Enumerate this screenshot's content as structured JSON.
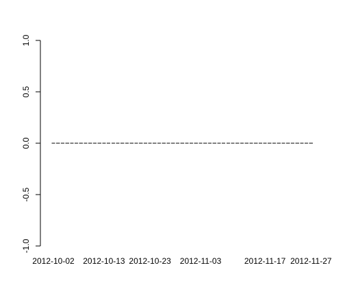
{
  "chart_data": {
    "type": "bar",
    "title": "",
    "xlabel": "",
    "ylabel": "",
    "ylim": [
      -1.0,
      1.0
    ],
    "y_ticks": [
      -1.0,
      -0.5,
      0.0,
      0.5,
      1.0
    ],
    "y_tick_labels": [
      "-1.0",
      "-0.5",
      "0.0",
      "0.5",
      "1.0"
    ],
    "x_tick_labels": [
      "2012-10-02",
      "2012-10-13",
      "2012-10-23",
      "2012-11-03",
      "2012-11-17",
      "2012-11-27"
    ],
    "start_date": "2012-10-02",
    "end_date": "2012-11-27",
    "daily_value": 0,
    "grid": false,
    "legend": "none"
  }
}
